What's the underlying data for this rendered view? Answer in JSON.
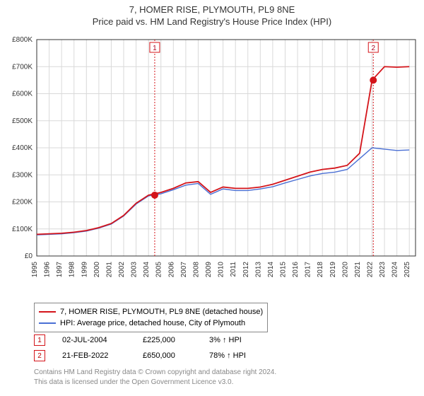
{
  "title_line1": "7, HOMER RISE, PLYMOUTH, PL9 8NE",
  "title_line2": "Price paid vs. HM Land Registry's House Price Index (HPI)",
  "chart": {
    "type": "line",
    "background_color": "#ffffff",
    "plot_border_color": "#333333",
    "grid_color": "#d9d9d9",
    "x_years": [
      1995,
      1996,
      1997,
      1998,
      1999,
      2000,
      2001,
      2002,
      2003,
      2004,
      2005,
      2006,
      2007,
      2008,
      2009,
      2010,
      2011,
      2012,
      2013,
      2014,
      2015,
      2016,
      2017,
      2018,
      2019,
      2020,
      2021,
      2022,
      2023,
      2024,
      2025
    ],
    "xlim": [
      1995,
      2025.5
    ],
    "ylim": [
      0,
      800000
    ],
    "ytick_step": 100000,
    "ytick_prefix": "£",
    "ytick_suffix": "K",
    "series": [
      {
        "name": "7, HOMER RISE, PLYMOUTH, PL9 8NE (detached house)",
        "color": "#d4141a",
        "line_width": 1.8,
        "y": [
          80000,
          82000,
          84000,
          88000,
          94000,
          105000,
          120000,
          150000,
          195000,
          225000,
          235000,
          250000,
          270000,
          275000,
          235000,
          255000,
          250000,
          250000,
          255000,
          265000,
          280000,
          295000,
          310000,
          320000,
          325000,
          335000,
          380000,
          650000,
          700000,
          698000,
          700000
        ]
      },
      {
        "name": "HPI: Average price, detached house, City of Plymouth",
        "color": "#4a6fd4",
        "line_width": 1.4,
        "y": [
          78000,
          80000,
          82000,
          86000,
          92000,
          103000,
          118000,
          148000,
          192000,
          222000,
          230000,
          245000,
          262000,
          268000,
          228000,
          248000,
          242000,
          242000,
          248000,
          256000,
          270000,
          283000,
          296000,
          305000,
          310000,
          320000,
          360000,
          400000,
          395000,
          390000,
          392000
        ]
      }
    ],
    "sale_markers": [
      {
        "label": "1",
        "x_year": 2004.5,
        "y_price": 225000,
        "line_color": "#d4141a",
        "box_border": "#d4141a"
      },
      {
        "label": "2",
        "x_year": 2022.1,
        "y_price": 650000,
        "line_color": "#d4141a",
        "box_border": "#d4141a"
      }
    ],
    "marker_box_y_top_offset": 28,
    "marker_dot_radius": 5,
    "marker_dot_color": "#d4141a",
    "axis_label_fontsize": 10,
    "title_fontsize": 13
  },
  "legend": {
    "items": [
      {
        "color": "#d4141a",
        "label": "7, HOMER RISE, PLYMOUTH, PL9 8NE (detached house)"
      },
      {
        "color": "#4a6fd4",
        "label": "HPI: Average price, detached house, City of Plymouth"
      }
    ]
  },
  "sales": [
    {
      "n": "1",
      "date": "02-JUL-2004",
      "price": "£225,000",
      "pct": "3% ↑ HPI",
      "border": "#d4141a"
    },
    {
      "n": "2",
      "date": "21-FEB-2022",
      "price": "£650,000",
      "pct": "78% ↑ HPI",
      "border": "#d4141a"
    }
  ],
  "footer": {
    "line1": "Contains HM Land Registry data © Crown copyright and database right 2024.",
    "line2": "This data is licensed under the Open Government Licence v3.0."
  }
}
